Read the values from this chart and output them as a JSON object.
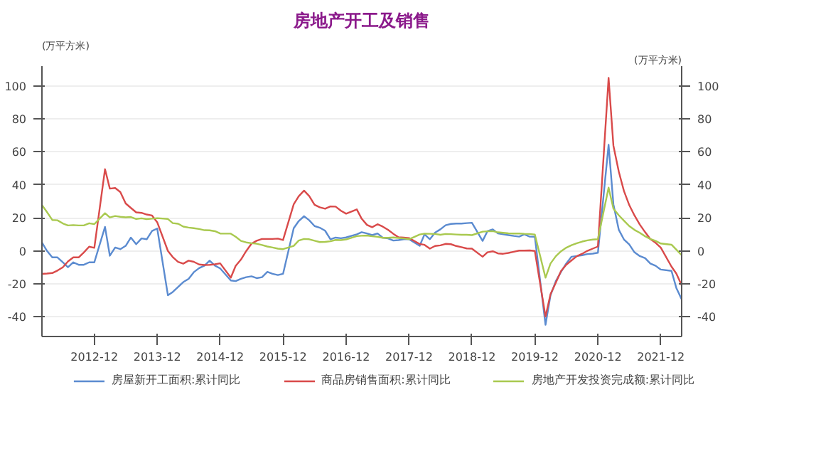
{
  "chart_data": {
    "type": "line",
    "title": "房地产开工及销售",
    "ylabel": "(万平方米)",
    "y2label": "(万平方米)",
    "x": [
      "2012-02",
      "2012-03",
      "2012-04",
      "2012-05",
      "2012-06",
      "2012-07",
      "2012-08",
      "2012-09",
      "2012-10",
      "2012-11",
      "2012-12",
      "2013-02",
      "2013-03",
      "2013-04",
      "2013-05",
      "2013-06",
      "2013-07",
      "2013-08",
      "2013-09",
      "2013-10",
      "2013-11",
      "2013-12",
      "2014-02",
      "2014-03",
      "2014-04",
      "2014-05",
      "2014-06",
      "2014-07",
      "2014-08",
      "2014-09",
      "2014-10",
      "2014-11",
      "2014-12",
      "2015-02",
      "2015-03",
      "2015-04",
      "2015-05",
      "2015-06",
      "2015-07",
      "2015-08",
      "2015-09",
      "2015-10",
      "2015-11",
      "2015-12",
      "2016-02",
      "2016-03",
      "2016-04",
      "2016-05",
      "2016-06",
      "2016-07",
      "2016-08",
      "2016-09",
      "2016-10",
      "2016-11",
      "2016-12",
      "2017-02",
      "2017-03",
      "2017-04",
      "2017-05",
      "2017-06",
      "2017-07",
      "2017-08",
      "2017-09",
      "2017-10",
      "2017-11",
      "2017-12",
      "2018-02",
      "2018-03",
      "2018-04",
      "2018-05",
      "2018-06",
      "2018-07",
      "2018-08",
      "2018-09",
      "2018-10",
      "2018-11",
      "2018-12",
      "2019-02",
      "2019-03",
      "2019-04",
      "2019-05",
      "2019-06",
      "2019-07",
      "2019-08",
      "2019-09",
      "2019-10",
      "2019-11",
      "2019-12",
      "2020-02",
      "2020-03",
      "2020-04",
      "2020-05",
      "2020-06",
      "2020-07",
      "2020-08",
      "2020-09",
      "2020-10",
      "2020-11",
      "2020-12",
      "2021-02",
      "2021-03",
      "2021-04",
      "2021-05",
      "2021-06",
      "2021-07",
      "2021-08",
      "2021-09",
      "2021-10",
      "2021-11",
      "2021-12",
      "2022-02",
      "2022-03",
      "2022-04"
    ],
    "series": [
      {
        "name": "房屋新开工面积:累计同比",
        "color": "#5b8bd0",
        "values": [
          5,
          0,
          -4,
          -4,
          -7,
          -10,
          -7,
          -8.5,
          -8.5,
          -7,
          -7,
          14.5,
          -3,
          2,
          1,
          3,
          8,
          4,
          7.5,
          7,
          12,
          13.5,
          -27,
          -25,
          -22,
          -19,
          -17,
          -13,
          -10.5,
          -9,
          -6,
          -9,
          -10.7,
          -18,
          -18.4,
          -17,
          -16,
          -15.5,
          -16.6,
          -16,
          -12.8,
          -14,
          -14.7,
          -14,
          13.7,
          18,
          21,
          18.5,
          15,
          14,
          12.2,
          7,
          8,
          7.6,
          8.1,
          10,
          11.3,
          10.5,
          9.5,
          10.5,
          8,
          7.5,
          6.2,
          6.5,
          7,
          7,
          3,
          10,
          7,
          11,
          13,
          15.5,
          16.3,
          16.5,
          16.5,
          16.8,
          17,
          6,
          11.9,
          13,
          10.5,
          10,
          9.5,
          9,
          8.6,
          10,
          8.6,
          8.5,
          -44.9,
          -27,
          -18.4,
          -12.8,
          -7.6,
          -3.6,
          -3.2,
          -2.7,
          -2,
          -1.7,
          -1.2,
          64.3,
          28.2,
          12.8,
          6.9,
          3.8,
          -0.9,
          -3.2,
          -4.5,
          -7.7,
          -9.1,
          -11.4,
          -12.2,
          -22.5,
          -29.4
        ]
      },
      {
        "name": "商品房销售面积:累计同比",
        "color": "#d94a4a",
        "values": [
          -14,
          -13.8,
          -13.5,
          -12,
          -10,
          -6.5,
          -4,
          -4,
          -1,
          2.5,
          1.8,
          49.5,
          37.7,
          38.1,
          35.6,
          28.7,
          26,
          23.3,
          23,
          22,
          21.4,
          17.3,
          -0.1,
          -3.8,
          -6.7,
          -7.8,
          -6,
          -6.7,
          -8.3,
          -8.6,
          -8.5,
          -8.2,
          -7.6,
          -16.3,
          -9.2,
          -5.3,
          -0.2,
          4.3,
          6.1,
          7.2,
          7.2,
          7.2,
          7.4,
          6.5,
          28.2,
          33.1,
          36.5,
          33.2,
          27.9,
          26.4,
          25.5,
          26.9,
          26.8,
          24.3,
          22.5,
          25.1,
          19.5,
          15.7,
          14.3,
          16.1,
          14.7,
          12.7,
          10.3,
          8.2,
          8,
          7.7,
          4.1,
          3.6,
          1.3,
          2.9,
          3.3,
          4.2,
          4,
          2.9,
          2.2,
          1.4,
          1.3,
          -3.6,
          -0.9,
          -0.3,
          -1.6,
          -1.8,
          -1.3,
          -0.6,
          0.1,
          0.1,
          0.2,
          -0.1,
          -39.9,
          -26.3,
          -19.3,
          -12.3,
          -8.4,
          -5.8,
          -3.3,
          -1.8,
          0,
          1.3,
          2.6,
          104.9,
          63.8,
          48.1,
          36.3,
          27.7,
          21.5,
          15.9,
          11.3,
          7.1,
          4.8,
          1.9,
          -9.6,
          -13.8,
          -20.9
        ]
      },
      {
        "name": "房地产开发投资完成额:累计同比",
        "color": "#a9c94f",
        "values": [
          27.8,
          23.5,
          18.7,
          18.5,
          16.6,
          15.4,
          15.6,
          15.4,
          15.4,
          16.7,
          16.2,
          22.8,
          20.2,
          21.1,
          20.6,
          20.3,
          20.5,
          19.3,
          19.7,
          19.2,
          19.5,
          19.8,
          19.3,
          16.8,
          16.4,
          14.7,
          14.1,
          13.7,
          13.2,
          12.5,
          12.4,
          11.9,
          10.5,
          10.4,
          8.5,
          6,
          5.1,
          4.6,
          4.3,
          3.5,
          2.6,
          2,
          1.3,
          1,
          3,
          6.2,
          7.2,
          7,
          6.1,
          5.3,
          5.4,
          5.8,
          6.6,
          6.5,
          6.9,
          8.9,
          9.1,
          9.3,
          8.8,
          8.5,
          7.9,
          7.9,
          8.1,
          7.8,
          7.5,
          7,
          9.9,
          10.4,
          10.3,
          10.2,
          9.7,
          10.2,
          10.1,
          9.9,
          9.7,
          9.7,
          9.5,
          11.6,
          11.8,
          11.9,
          11.2,
          10.9,
          10.6,
          10.5,
          10.5,
          10.3,
          10.2,
          9.9,
          -16.3,
          -7.7,
          -3.3,
          -0.3,
          1.9,
          3.4,
          4.6,
          5.6,
          6.3,
          6.8,
          7,
          38.3,
          25.6,
          21.6,
          18.3,
          15,
          12.7,
          10.9,
          8.8,
          7.2,
          6,
          4.4,
          3.7,
          0.7,
          -2.7
        ]
      }
    ],
    "xlim": [
      "2012-02",
      "2022-04"
    ],
    "xticks": [
      "2012-12",
      "2013-12",
      "2014-12",
      "2015-12",
      "2016-12",
      "2017-12",
      "2018-12",
      "2019-12",
      "2020-12",
      "2021-12"
    ],
    "ylim": [
      -52,
      112
    ],
    "yticks": [
      -40,
      -20,
      0,
      20,
      40,
      60,
      80,
      100
    ],
    "y2lim": [
      -52,
      112
    ],
    "y2ticks": [
      -40,
      -20,
      0,
      20,
      40,
      60,
      80,
      100
    ],
    "grid": "y",
    "legend": "bottom",
    "line_style": "solid",
    "marker": "none"
  }
}
